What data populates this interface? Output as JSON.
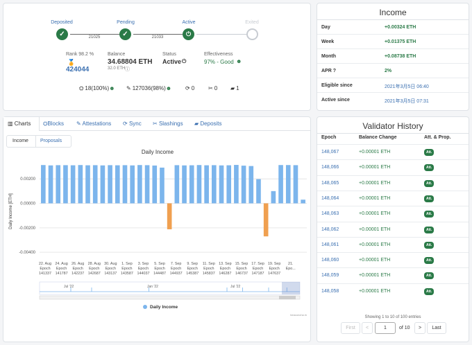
{
  "status": {
    "steps": [
      {
        "label": "Deposited",
        "state": "done"
      },
      {
        "label": "Pending",
        "state": "done"
      },
      {
        "label": "Active",
        "state": "active"
      },
      {
        "label": "Exited",
        "state": "future"
      }
    ],
    "epochs": [
      "21025",
      "21033"
    ],
    "rank_label": "Rank 98.2 %",
    "rank_value": "424044",
    "balance_label": "Balance",
    "balance_value": "34.68804 ETH",
    "balance_sub": "32.0 ETH",
    "status_label": "Status",
    "status_value": "Active",
    "effectiveness_label": "Effectiveness",
    "effectiveness_value": "97% - Good",
    "counters": [
      {
        "icon": "blocks-icon",
        "text": "18(100%"
      },
      {
        "icon": "attestations-icon",
        "text": "127036(98%"
      },
      {
        "icon": "sync-icon",
        "text": "0"
      },
      {
        "icon": "slashing-icon",
        "text": "0"
      },
      {
        "icon": "deposit-icon",
        "text": "1"
      }
    ]
  },
  "income": {
    "title": "Income",
    "rows": [
      {
        "key": "Day",
        "value": "+0.00324 ETH",
        "kind": "pos"
      },
      {
        "key": "Week",
        "value": "+0.01375 ETH",
        "kind": "pos"
      },
      {
        "key": "Month",
        "value": "+0.08738 ETH",
        "kind": "pos"
      },
      {
        "key": "APR",
        "value": "2%",
        "kind": "pos"
      },
      {
        "key": "Eligible since",
        "value": "2021年3月5日 06:40",
        "kind": "date"
      },
      {
        "key": "Active since",
        "value": "2021年3月5日 07:31",
        "kind": "date"
      }
    ]
  },
  "tabs": [
    "Charts",
    "Blocks",
    "Attestations",
    "Sync",
    "Slashings",
    "Deposits"
  ],
  "subtabs": [
    "Income",
    "Proposals"
  ],
  "chart_data": {
    "type": "bar",
    "title": "Daily Income",
    "ylabel": "Daily Income [ETH]",
    "ylim": [
      -0.0045,
      0.0032
    ],
    "yticks": [
      "0.00200",
      "0.00000",
      "-0.00200",
      "-0.00400"
    ],
    "ytick_values": [
      0.002,
      0,
      -0.002,
      -0.004
    ],
    "xtick_labels": [
      [
        "22. Aug",
        "Epoch",
        "141337"
      ],
      [
        "24. Aug",
        "Epoch",
        "141787"
      ],
      [
        "26. Aug",
        "Epoch",
        "142237"
      ],
      [
        "28. Aug",
        "Epoch",
        "142687"
      ],
      [
        "30. Aug",
        "Epoch",
        "143137"
      ],
      [
        "1. Sep",
        "Epoch",
        "143587"
      ],
      [
        "3. Sep",
        "Epoch",
        "144037"
      ],
      [
        "5. Sep",
        "Epoch",
        "144487"
      ],
      [
        "7. Sep",
        "Epoch",
        "144937"
      ],
      [
        "9. Sep",
        "Epoch",
        "145387"
      ],
      [
        "11. Sep",
        "Epoch",
        "145837"
      ],
      [
        "13. Sep",
        "Epoch",
        "146287"
      ],
      [
        "15. Sep",
        "Epoch",
        "146737"
      ],
      [
        "17. Sep",
        "Epoch",
        "147187"
      ],
      [
        "19. Sep",
        "Epoch",
        "147637"
      ],
      [
        "21.",
        "Epo..."
      ]
    ],
    "series": [
      {
        "name": "Daily Income",
        "color": "#7cb5ec",
        "values": [
          0.00313,
          0.0031,
          0.00312,
          0.00312,
          0.00311,
          0.00313,
          0.00311,
          0.00312,
          0.0031,
          0.00312,
          0.00311,
          0.00312,
          0.0031,
          0.00313,
          0.00312,
          0.00309,
          0.00292,
          -0.00212,
          0.00312,
          0.0031,
          0.00311,
          0.00313,
          0.00311,
          0.00312,
          0.0031,
          0.00311,
          0.00314,
          0.00308,
          0.00305,
          0.00198,
          -0.0027,
          0.001,
          0.00313,
          0.00313,
          0.00312,
          0.0003
        ]
      }
    ],
    "negative_color": "#f0a050",
    "navigator_labels": [
      "Jul '22",
      "Jan '22",
      "Jul '22"
    ],
    "legend": "Daily Income",
    "credit": "beaconcha.in",
    "grid": true,
    "legend_position": "bottom"
  },
  "history": {
    "title": "Validator History",
    "headers": [
      "Epoch",
      "Balance Change",
      "Att. & Prop."
    ],
    "rows": [
      {
        "epoch": "148,067",
        "change": "+0.00001 ETH",
        "badge": "Att."
      },
      {
        "epoch": "148,066",
        "change": "+0.00001 ETH",
        "badge": "Att."
      },
      {
        "epoch": "148,065",
        "change": "+0.00001 ETH",
        "badge": "Att."
      },
      {
        "epoch": "148,064",
        "change": "+0.00001 ETH",
        "badge": "Att."
      },
      {
        "epoch": "148,063",
        "change": "+0.00001 ETH",
        "badge": "Att."
      },
      {
        "epoch": "148,062",
        "change": "+0.00001 ETH",
        "badge": "Att."
      },
      {
        "epoch": "148,061",
        "change": "+0.00001 ETH",
        "badge": "Att."
      },
      {
        "epoch": "148,060",
        "change": "+0.00001 ETH",
        "badge": "Att."
      },
      {
        "epoch": "148,059",
        "change": "+0.00001 ETH",
        "badge": "Att."
      },
      {
        "epoch": "148,058",
        "change": "+0.00001 ETH",
        "badge": "Att."
      }
    ],
    "showing": "Showing 1 to 10 of 100 entries",
    "pager": {
      "first": "First",
      "prev": "<",
      "page": "1",
      "of": "of 10",
      "next": ">",
      "last": "Last"
    }
  }
}
